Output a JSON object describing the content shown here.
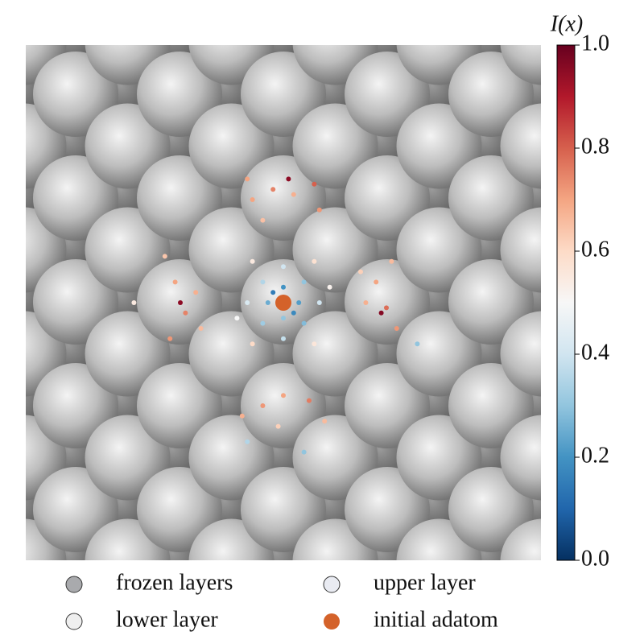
{
  "chart_data": {
    "type": "scatter",
    "colormap": "RdBu_r",
    "colorbar": {
      "label": "I(x)",
      "clim": [
        0,
        1
      ],
      "ticks": [
        {
          "value": 0,
          "label": "0.0"
        },
        0.2,
        0.4,
        0.6,
        0.8,
        {
          "value": 1,
          "label": "1.0"
        }
      ]
    },
    "xlim": [
      0,
      10
    ],
    "ylim": [
      0,
      10
    ],
    "points": {
      "x": [
        5.0,
        4.7,
        5.3,
        5.0,
        4.6,
        5.4,
        4.6,
        5.4,
        5.0,
        5.0,
        4.3,
        5.7,
        4.8,
        5.2,
        4.4,
        5.6,
        4.4,
        5.6,
        5.9,
        4.1,
        4.4,
        4.8,
        5.2,
        5.6,
        5.1,
        4.6,
        5.7,
        4.3,
        2.9,
        3.1,
        3.3,
        2.8,
        3.0,
        3.4,
        2.7,
        6.8,
        7.0,
        6.6,
        7.2,
        6.9,
        6.5,
        7.1,
        4.6,
        5.0,
        5.5,
        4.2,
        5.8,
        4.9,
        4.3,
        5.4,
        2.1,
        7.6
      ],
      "y": [
        5.3,
        5.0,
        5.0,
        4.7,
        5.4,
        5.4,
        4.6,
        4.6,
        5.7,
        4.3,
        5.0,
        5.0,
        5.2,
        4.8,
        5.8,
        5.8,
        4.2,
        4.2,
        5.3,
        4.7,
        7.0,
        7.2,
        7.1,
        7.3,
        7.4,
        6.6,
        6.8,
        7.4,
        5.4,
        4.8,
        5.2,
        4.3,
        5.0,
        4.5,
        5.9,
        5.4,
        4.9,
        5.0,
        4.5,
        4.8,
        5.6,
        5.8,
        3.0,
        3.2,
        3.1,
        2.8,
        2.7,
        2.6,
        2.3,
        2.1,
        5.0,
        4.2
      ],
      "values": [
        0.2,
        0.25,
        0.22,
        0.3,
        0.35,
        0.3,
        0.32,
        0.28,
        0.4,
        0.38,
        0.42,
        0.4,
        0.15,
        0.18,
        0.55,
        0.58,
        0.6,
        0.56,
        0.52,
        0.5,
        0.7,
        0.75,
        0.68,
        0.8,
        0.95,
        0.65,
        0.72,
        0.7,
        0.7,
        0.75,
        0.68,
        0.72,
        0.95,
        0.66,
        0.64,
        0.7,
        0.78,
        0.68,
        0.72,
        0.96,
        0.62,
        0.66,
        0.72,
        0.7,
        0.76,
        0.68,
        0.66,
        0.62,
        0.35,
        0.3,
        0.55,
        0.3
      ]
    },
    "initial_adatom": {
      "x": 5.0,
      "y": 5.0
    },
    "legend": [
      {
        "name": "frozen layers",
        "color": "#a9aaad"
      },
      {
        "name": "upper layer",
        "color": "#e9ebf2"
      },
      {
        "name": "lower layer",
        "color": "#efefef"
      },
      {
        "name": "initial adatom",
        "color": "#d4622a"
      }
    ]
  }
}
